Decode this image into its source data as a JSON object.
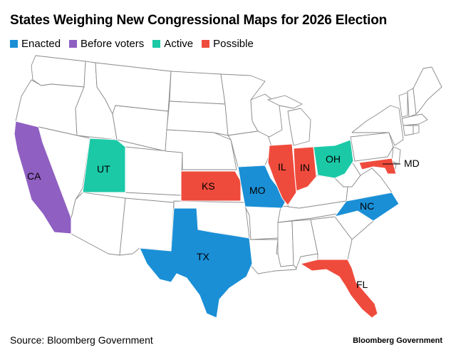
{
  "title": "States Weighing New Congressional Maps for 2026 Election",
  "legend": [
    {
      "label": "Enacted",
      "color": "#1a8fd6"
    },
    {
      "label": "Before voters",
      "color": "#8f5fc2"
    },
    {
      "label": "Active",
      "color": "#1bc9a7"
    },
    {
      "label": "Possible",
      "color": "#ef4b3c"
    }
  ],
  "states": [
    {
      "code": "CA",
      "label": "CA",
      "status": "Before voters"
    },
    {
      "code": "UT",
      "label": "UT",
      "status": "Active"
    },
    {
      "code": "KS",
      "label": "KS",
      "status": "Possible"
    },
    {
      "code": "MO",
      "label": "MO",
      "status": "Enacted"
    },
    {
      "code": "IL",
      "label": "IL",
      "status": "Possible"
    },
    {
      "code": "IN",
      "label": "IN",
      "status": "Possible"
    },
    {
      "code": "OH",
      "label": "OH",
      "status": "Active"
    },
    {
      "code": "MD",
      "label": "MD",
      "status": "Possible"
    },
    {
      "code": "NC",
      "label": "NC",
      "status": "Enacted"
    },
    {
      "code": "TX",
      "label": "TX",
      "status": "Enacted"
    },
    {
      "code": "FL",
      "label": "FL",
      "status": "Possible"
    }
  ],
  "source": "Source: Bloomberg Government",
  "brand": "Bloomberg Government"
}
